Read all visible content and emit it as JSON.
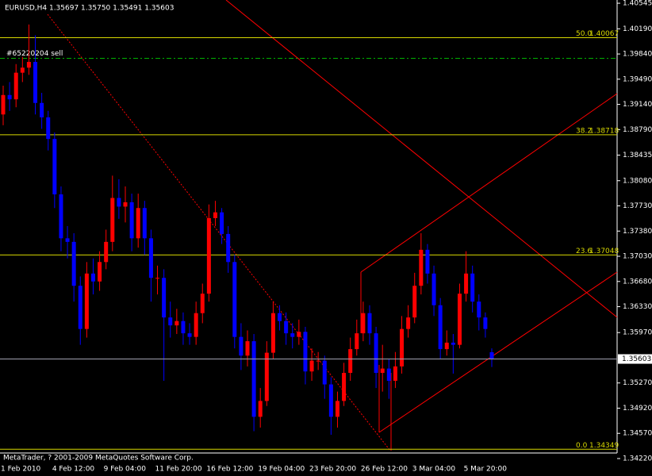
{
  "chart_data": {
    "type": "candlestick",
    "title": "EURUSD,H4  1.35697 1.35750 1.35491 1.35603",
    "footnote": "MetaTrader, ? 2001-2009 MetaQuotes Software Corp.",
    "up_color": "#ff0000",
    "down_color": "#0000ff",
    "categories": [
      "1 Feb 2010",
      null,
      null,
      null,
      null,
      null,
      null,
      null,
      "4 Feb 12:00",
      null,
      null,
      null,
      null,
      null,
      null,
      null,
      "9 Feb 04:00",
      null,
      null,
      null,
      null,
      null,
      null,
      null,
      "11 Feb 20:00",
      null,
      null,
      null,
      null,
      null,
      null,
      null,
      "16 Feb 12:00",
      null,
      null,
      null,
      null,
      null,
      null,
      null,
      "19 Feb 04:00",
      null,
      null,
      null,
      null,
      null,
      null,
      null,
      "23 Feb 20:00",
      null,
      null,
      null,
      null,
      null,
      null,
      null,
      "26 Feb 12:00",
      null,
      null,
      null,
      null,
      null,
      null,
      null,
      "3 Mar 04:00",
      null,
      null,
      null,
      null,
      null,
      null,
      null,
      "5 Mar 20:00",
      null,
      null,
      null,
      null
    ],
    "open": [
      1.39,
      1.3927,
      1.3921,
      1.3958,
      1.3965,
      1.3973,
      1.3916,
      1.3896,
      1.3866,
      1.3789,
      1.3728,
      1.3723,
      1.3662,
      1.3602,
      1.3679,
      1.3668,
      1.3695,
      1.3723,
      1.3784,
      1.3772,
      1.3778,
      1.3728,
      1.377,
      1.3728,
      1.3673,
      1.3673,
      1.3618,
      1.3607,
      1.3613,
      1.3596,
      1.3591,
      1.3624,
      1.3651,
      1.3756,
      1.3764,
      1.3734,
      1.3695,
      1.3591,
      1.3565,
      1.3585,
      1.348,
      1.3502,
      1.3569,
      1.3624,
      1.3613,
      1.3596,
      1.3591,
      1.3598,
      1.3543,
      1.3558,
      1.3558,
      1.3525,
      1.348,
      1.3502,
      1.3541,
      1.3574,
      1.3596,
      1.3624,
      1.3596,
      1.3541,
      1.3547,
      1.353,
      1.355,
      1.3602,
      1.3618,
      1.3662,
      1.3712,
      1.3679,
      1.3635,
      1.3574,
      1.3583,
      1.358,
      1.3651,
      1.3679,
      1.364,
      1.3618,
      1.35697
    ],
    "high": [
      1.394,
      1.3945,
      1.397,
      1.398,
      1.4025,
      1.401,
      1.393,
      1.3905,
      1.3875,
      1.38,
      1.3745,
      1.3735,
      1.3675,
      1.3695,
      1.37,
      1.371,
      1.374,
      1.3815,
      1.381,
      1.38,
      1.379,
      1.379,
      1.378,
      1.374,
      1.369,
      1.3685,
      1.364,
      1.363,
      1.3625,
      1.361,
      1.364,
      1.3665,
      1.3775,
      1.378,
      1.377,
      1.3745,
      1.3705,
      1.361,
      1.36,
      1.3595,
      1.352,
      1.3585,
      1.364,
      1.3635,
      1.3625,
      1.361,
      1.3615,
      1.3605,
      1.3575,
      1.357,
      1.3565,
      1.3535,
      1.3515,
      1.3555,
      1.359,
      1.3615,
      1.364,
      1.3635,
      1.3605,
      1.358,
      1.356,
      1.357,
      1.362,
      1.3635,
      1.368,
      1.3735,
      1.372,
      1.369,
      1.3645,
      1.36,
      1.3595,
      1.3665,
      1.371,
      1.369,
      1.365,
      1.3625,
      1.3575
    ],
    "low": [
      1.3885,
      1.3905,
      1.391,
      1.3945,
      1.3955,
      1.39,
      1.388,
      1.385,
      1.377,
      1.371,
      1.37,
      1.364,
      1.358,
      1.359,
      1.365,
      1.3655,
      1.3685,
      1.371,
      1.3755,
      1.375,
      1.371,
      1.3715,
      1.3705,
      1.364,
      1.365,
      1.353,
      1.359,
      1.3595,
      1.358,
      1.358,
      1.358,
      1.361,
      1.364,
      1.3745,
      1.372,
      1.368,
      1.3575,
      1.3545,
      1.355,
      1.346,
      1.3465,
      1.3495,
      1.356,
      1.36,
      1.358,
      1.3575,
      1.358,
      1.3525,
      1.353,
      1.3545,
      1.3505,
      1.3455,
      1.3465,
      1.3495,
      1.353,
      1.3565,
      1.3585,
      1.358,
      1.352,
      1.3515,
      1.3505,
      1.352,
      1.354,
      1.359,
      1.361,
      1.365,
      1.3665,
      1.362,
      1.356,
      1.3565,
      1.354,
      1.3575,
      1.364,
      1.3625,
      1.36,
      1.359,
      1.35491
    ],
    "close": [
      1.3927,
      1.3921,
      1.3958,
      1.3965,
      1.3973,
      1.3916,
      1.3896,
      1.3866,
      1.3789,
      1.3728,
      1.3723,
      1.3662,
      1.3602,
      1.3679,
      1.3668,
      1.3695,
      1.3723,
      1.3784,
      1.3772,
      1.3778,
      1.3728,
      1.377,
      1.3728,
      1.3673,
      1.3673,
      1.3618,
      1.3607,
      1.3613,
      1.3596,
      1.3591,
      1.3624,
      1.3651,
      1.3756,
      1.3764,
      1.3734,
      1.3695,
      1.3591,
      1.3565,
      1.3585,
      1.348,
      1.3502,
      1.3569,
      1.3624,
      1.3613,
      1.3596,
      1.3591,
      1.3598,
      1.3543,
      1.3558,
      1.3558,
      1.3525,
      1.348,
      1.3502,
      1.3541,
      1.3574,
      1.3596,
      1.3624,
      1.3596,
      1.3541,
      1.3547,
      1.353,
      1.355,
      1.3602,
      1.3618,
      1.3662,
      1.3712,
      1.3679,
      1.3635,
      1.3574,
      1.3583,
      1.358,
      1.3651,
      1.3679,
      1.364,
      1.3618,
      1.3602,
      1.35603
    ],
    "ylim": [
      1.3422,
      1.4059
    ],
    "yticks": [
      {
        "value": 1.40545,
        "label": "1.40545"
      },
      {
        "value": 1.4019,
        "label": "1.40190"
      },
      {
        "value": 1.3984,
        "label": "1.39840"
      },
      {
        "value": 1.3949,
        "label": "1.39490"
      },
      {
        "value": 1.3914,
        "label": "1.39140"
      },
      {
        "value": 1.3879,
        "label": "1.38790"
      },
      {
        "value": 1.38435,
        "label": "1.38435"
      },
      {
        "value": 1.3808,
        "label": "1.38080"
      },
      {
        "value": 1.3773,
        "label": "1.37730"
      },
      {
        "value": 1.3738,
        "label": "1.37380"
      },
      {
        "value": 1.3703,
        "label": "1.37030"
      },
      {
        "value": 1.3668,
        "label": "1.36680"
      },
      {
        "value": 1.3633,
        "label": "1.36330"
      },
      {
        "value": 1.3597,
        "label": "1.35970"
      },
      {
        "value": 1.3527,
        "label": "1.35270"
      },
      {
        "value": 1.3492,
        "label": "1.34920"
      },
      {
        "value": 1.3457,
        "label": "1.34570"
      },
      {
        "value": 1.3422,
        "label": "1.34220"
      }
    ],
    "levels": [
      {
        "label": "50.0",
        "value": 1.40067
      },
      {
        "label": "38.2",
        "value": 1.38718
      },
      {
        "label": "23.6",
        "value": 1.37048
      },
      {
        "label": "0.0",
        "value": 1.34349
      }
    ],
    "level_color": "#d8d800",
    "order": {
      "label": "#65220204 sell",
      "value": 1.3978,
      "color": "#00b000"
    },
    "current_price": 1.35603
  }
}
